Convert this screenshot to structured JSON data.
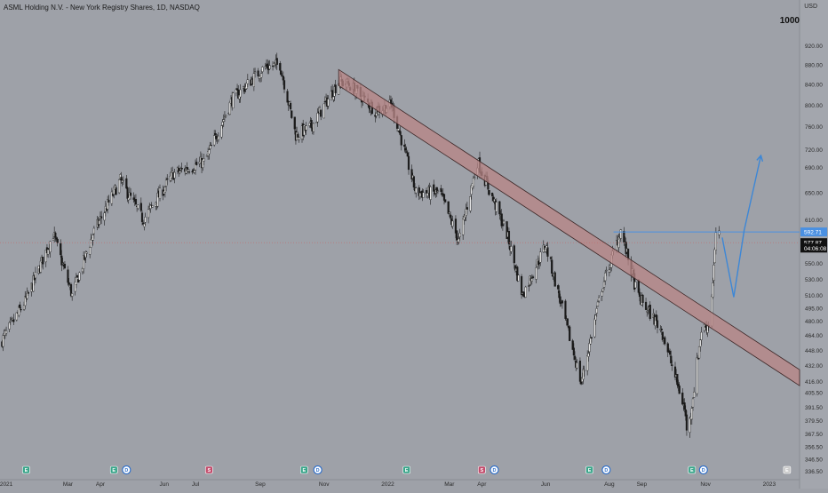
{
  "header": {
    "title": "ASML Holding N.V. - New York Registry Shares, 1D, NASDAQ",
    "currency": "USD",
    "timeframe_label": "1000"
  },
  "colors": {
    "background": "#9ea1a8",
    "candle": "#1a1a1a",
    "channel_fill": "#b88585",
    "projection": "#3d87d6",
    "hline": "#4a90e2",
    "price_label": "#111111",
    "event_earnings": "#3aa58a",
    "event_dividend": "#2f6fc9",
    "event_split": "#c24b6b"
  },
  "chart_data": {
    "type": "candlestick",
    "y_axis": {
      "scale": "log",
      "ylim": [
        330,
        1000
      ],
      "ticks": [
        "920.00",
        "880.00",
        "840.00",
        "800.00",
        "760.00",
        "720.00",
        "690.00",
        "650.00",
        "610.00",
        "580.00",
        "550.00",
        "530.00",
        "510.00",
        "495.00",
        "480.00",
        "464.00",
        "448.00",
        "432.00",
        "416.00",
        "405.50",
        "391.50",
        "379.50",
        "367.50",
        "356.50",
        "346.50",
        "336.50"
      ]
    },
    "x_axis": {
      "range": [
        "2020-12-26",
        "2023-01-30"
      ],
      "ticks": [
        {
          "date": "2021-01-01",
          "label": "2021"
        },
        {
          "date": "2021-03-01",
          "label": "Mar"
        },
        {
          "date": "2021-04-01",
          "label": "Apr"
        },
        {
          "date": "2021-06-01",
          "label": "Jun"
        },
        {
          "date": "2021-07-01",
          "label": "Jul"
        },
        {
          "date": "2021-09-01",
          "label": "Sep"
        },
        {
          "date": "2021-11-01",
          "label": "Nov"
        },
        {
          "date": "2022-01-01",
          "label": "2022"
        },
        {
          "date": "2022-03-01",
          "label": "Mar"
        },
        {
          "date": "2022-04-01",
          "label": "Apr"
        },
        {
          "date": "2022-06-01",
          "label": "Jun"
        },
        {
          "date": "2022-08-01",
          "label": "Aug"
        },
        {
          "date": "2022-09-01",
          "label": "Sep"
        },
        {
          "date": "2022-11-01",
          "label": "Nov"
        },
        {
          "date": "2023-01-01",
          "label": "2023"
        }
      ]
    },
    "price_path": [
      {
        "date": "2020-12-26",
        "close": 455
      },
      {
        "date": "2021-01-20",
        "close": 505
      },
      {
        "date": "2021-02-15",
        "close": 590
      },
      {
        "date": "2021-03-05",
        "close": 510
      },
      {
        "date": "2021-03-25",
        "close": 590
      },
      {
        "date": "2021-04-20",
        "close": 670
      },
      {
        "date": "2021-05-12",
        "close": 610
      },
      {
        "date": "2021-06-10",
        "close": 680
      },
      {
        "date": "2021-07-10",
        "close": 700
      },
      {
        "date": "2021-08-05",
        "close": 810
      },
      {
        "date": "2021-09-05",
        "close": 875
      },
      {
        "date": "2021-09-20",
        "close": 880
      },
      {
        "date": "2021-10-05",
        "close": 745
      },
      {
        "date": "2021-10-20",
        "close": 760
      },
      {
        "date": "2021-11-15",
        "close": 845
      },
      {
        "date": "2021-11-25",
        "close": 840
      },
      {
        "date": "2021-12-20",
        "close": 790
      },
      {
        "date": "2022-01-05",
        "close": 800
      },
      {
        "date": "2022-01-28",
        "close": 650
      },
      {
        "date": "2022-02-20",
        "close": 650
      },
      {
        "date": "2022-03-10",
        "close": 580
      },
      {
        "date": "2022-03-28",
        "close": 700
      },
      {
        "date": "2022-04-25",
        "close": 590
      },
      {
        "date": "2022-05-10",
        "close": 510
      },
      {
        "date": "2022-06-01",
        "close": 575
      },
      {
        "date": "2022-06-20",
        "close": 480
      },
      {
        "date": "2022-07-05",
        "close": 415
      },
      {
        "date": "2022-07-25",
        "close": 520
      },
      {
        "date": "2022-08-12",
        "close": 595
      },
      {
        "date": "2022-08-28",
        "close": 510
      },
      {
        "date": "2022-09-20",
        "close": 470
      },
      {
        "date": "2022-10-12",
        "close": 390
      },
      {
        "date": "2022-10-15",
        "close": 365
      },
      {
        "date": "2022-10-28",
        "close": 470
      },
      {
        "date": "2022-11-05",
        "close": 478
      },
      {
        "date": "2022-11-11",
        "close": 585
      },
      {
        "date": "2022-11-14",
        "close": 595
      },
      {
        "date": "2022-11-15",
        "close": 578
      }
    ],
    "annotations": {
      "horizontal_line": {
        "price": 592.71,
        "from": "2022-08-05"
      },
      "current_price_line": 577.87,
      "channel": {
        "start": {
          "date": "2021-11-15",
          "price": 870
        },
        "end": {
          "date": "2023-01-30",
          "price": 428
        },
        "band_width": 18
      },
      "projection": [
        {
          "date": "2022-11-17",
          "price": 585
        },
        {
          "date": "2022-11-28",
          "price": 508
        },
        {
          "date": "2022-12-08",
          "price": 595
        },
        {
          "date": "2022-12-24",
          "price": 710
        }
      ]
    },
    "price_labels": [
      {
        "text": "592.71",
        "price": 592.71,
        "style": "hline"
      },
      {
        "text": "577.87",
        "price": 577.87,
        "style": "last"
      },
      {
        "text": "04:06:08",
        "price": 570.5,
        "style": "last"
      }
    ],
    "events": [
      {
        "date": "2021-01-20",
        "kind": "earnings",
        "glyph": "E"
      },
      {
        "date": "2021-04-14",
        "kind": "earnings",
        "glyph": "E"
      },
      {
        "date": "2021-04-26",
        "kind": "dividend",
        "glyph": "D"
      },
      {
        "date": "2021-07-14",
        "kind": "split",
        "glyph": "S"
      },
      {
        "date": "2021-10-13",
        "kind": "earnings",
        "glyph": "E"
      },
      {
        "date": "2021-10-26",
        "kind": "dividend",
        "glyph": "D"
      },
      {
        "date": "2022-01-19",
        "kind": "earnings",
        "glyph": "E"
      },
      {
        "date": "2022-04-01",
        "kind": "split",
        "glyph": "S"
      },
      {
        "date": "2022-04-13",
        "kind": "dividend",
        "glyph": "D"
      },
      {
        "date": "2022-07-13",
        "kind": "earnings",
        "glyph": "E"
      },
      {
        "date": "2022-07-29",
        "kind": "dividend",
        "glyph": "D"
      },
      {
        "date": "2022-10-19",
        "kind": "earnings",
        "glyph": "E"
      },
      {
        "date": "2022-10-30",
        "kind": "dividend",
        "glyph": "D"
      },
      {
        "date": "2023-01-18",
        "kind": "upcoming",
        "glyph": "E"
      }
    ]
  }
}
